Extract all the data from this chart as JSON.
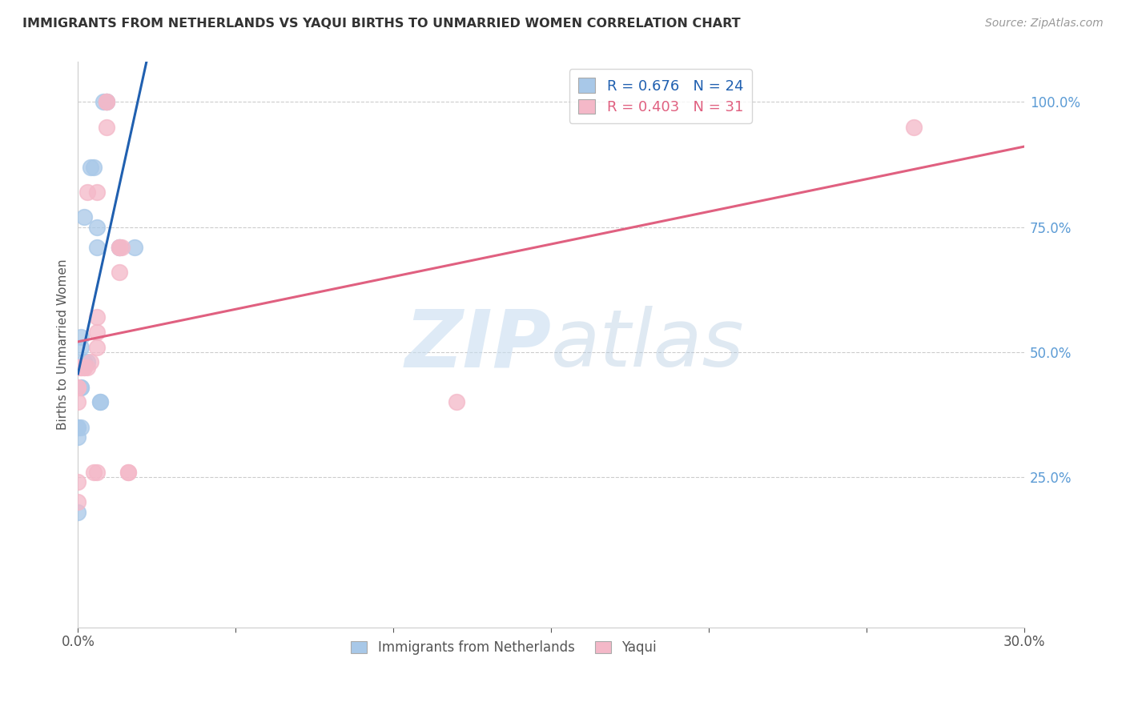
{
  "title": "IMMIGRANTS FROM NETHERLANDS VS YAQUI BIRTHS TO UNMARRIED WOMEN CORRELATION CHART",
  "source": "Source: ZipAtlas.com",
  "ylabel": "Births to Unmarried Women",
  "xmin": 0.0,
  "xmax": 0.3,
  "ymin": -0.05,
  "ymax": 1.08,
  "legend_blue_r": "0.676",
  "legend_blue_n": "24",
  "legend_pink_r": "0.403",
  "legend_pink_n": "31",
  "blue_color": "#a8c8e8",
  "pink_color": "#f4b8c8",
  "blue_line_color": "#2060b0",
  "pink_line_color": "#e06080",
  "ytick_color": "#5b9bd5",
  "watermark_color": "#c8ddf0",
  "blue_scatter_x": [
    0.008,
    0.009,
    0.009,
    0.005,
    0.004,
    0.002,
    0.001,
    0.001,
    0.002,
    0.003,
    0.006,
    0.006,
    0.013,
    0.013,
    0.018,
    0.0,
    0.0,
    0.001,
    0.0,
    0.007,
    0.007,
    0.001,
    0.001,
    0.0
  ],
  "blue_scatter_y": [
    1.0,
    1.0,
    1.0,
    0.87,
    0.87,
    0.77,
    0.51,
    0.53,
    0.48,
    0.48,
    0.75,
    0.71,
    0.71,
    0.71,
    0.71,
    0.35,
    0.35,
    0.35,
    0.18,
    0.4,
    0.4,
    0.43,
    0.43,
    0.33
  ],
  "pink_scatter_x": [
    0.009,
    0.009,
    0.009,
    0.003,
    0.006,
    0.013,
    0.013,
    0.014,
    0.013,
    0.006,
    0.006,
    0.006,
    0.004,
    0.003,
    0.002,
    0.002,
    0.001,
    0.001,
    0.0,
    0.0,
    0.0,
    0.0,
    0.0,
    0.12,
    0.005,
    0.006,
    0.0,
    0.0,
    0.016,
    0.016,
    0.265
  ],
  "pink_scatter_y": [
    1.0,
    1.0,
    0.95,
    0.82,
    0.82,
    0.71,
    0.71,
    0.71,
    0.66,
    0.57,
    0.54,
    0.51,
    0.48,
    0.47,
    0.47,
    0.47,
    0.47,
    0.47,
    0.47,
    0.47,
    0.43,
    0.43,
    0.4,
    0.4,
    0.26,
    0.26,
    0.24,
    0.2,
    0.26,
    0.26,
    0.95
  ]
}
